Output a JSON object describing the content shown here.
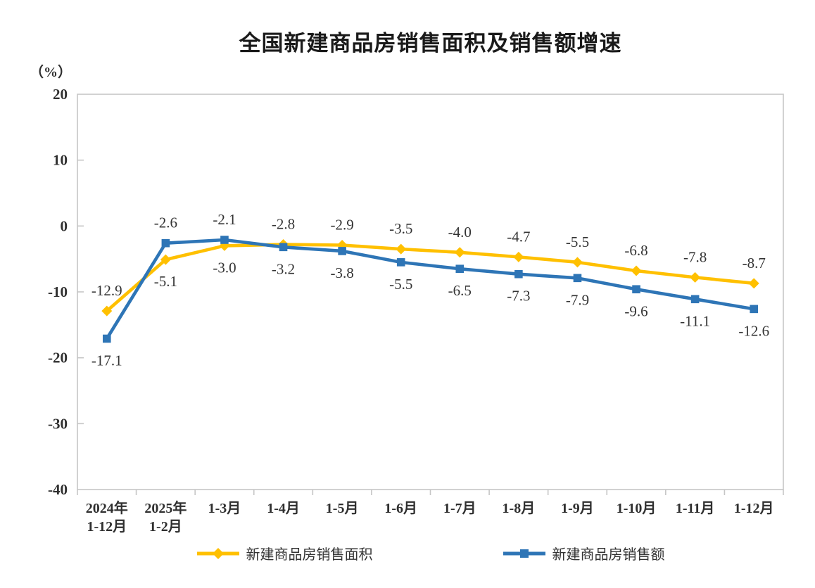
{
  "title": "全国新建商品房销售面积及销售额增速",
  "chart_data": {
    "type": "line",
    "title": "全国新建商品房销售面积及销售额增速",
    "ylabel": "（%）",
    "xlabel": "",
    "ylim": [
      -40,
      20
    ],
    "yticks": [
      20,
      10,
      0,
      -10,
      -20,
      -30,
      -40
    ],
    "grid": false,
    "legend_position": "bottom",
    "categories": [
      "2024年\n1-12月",
      "2025年\n1-2月",
      "1-3月",
      "1-4月",
      "1-5月",
      "1-6月",
      "1-7月",
      "1-8月",
      "1-9月",
      "1-10月",
      "1-11月",
      "1-12月"
    ],
    "series": [
      {
        "name": "新建商品房销售面积",
        "marker": "diamond",
        "color": "#FFC000",
        "values": [
          -12.9,
          -5.1,
          -3.0,
          -2.8,
          -2.9,
          -3.5,
          -4.0,
          -4.7,
          -5.5,
          -6.8,
          -7.8,
          -8.7
        ]
      },
      {
        "name": "新建商品房销售额",
        "marker": "square",
        "color": "#2E75B6",
        "values": [
          -17.1,
          -2.6,
          -2.1,
          -3.2,
          -3.8,
          -5.5,
          -6.5,
          -7.3,
          -7.9,
          -9.6,
          -11.1,
          -12.6
        ]
      }
    ]
  },
  "colors": {
    "axis": "#C6C6C6",
    "label_text": "#333333",
    "tick_text": "#2f2f2f",
    "background": "#FFFFFF"
  }
}
